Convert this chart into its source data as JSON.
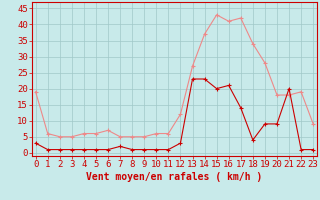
{
  "hours": [
    0,
    1,
    2,
    3,
    4,
    5,
    6,
    7,
    8,
    9,
    10,
    11,
    12,
    13,
    14,
    15,
    16,
    17,
    18,
    19,
    20,
    21,
    22,
    23
  ],
  "wind_avg": [
    3,
    1,
    1,
    1,
    1,
    1,
    1,
    2,
    1,
    1,
    1,
    1,
    3,
    23,
    23,
    20,
    21,
    14,
    4,
    9,
    9,
    20,
    1,
    1
  ],
  "wind_gust": [
    19,
    6,
    5,
    5,
    6,
    6,
    7,
    5,
    5,
    5,
    6,
    6,
    12,
    27,
    37,
    43,
    41,
    42,
    34,
    28,
    18,
    18,
    19,
    9
  ],
  "bg_color": "#c8eaea",
  "grid_color": "#a0c8c8",
  "line_avg_color": "#cc0000",
  "line_gust_color": "#ee8888",
  "xlabel": "Vent moyen/en rafales ( km/h )",
  "ylabel_ticks": [
    0,
    5,
    10,
    15,
    20,
    25,
    30,
    35,
    40,
    45
  ],
  "ylim": [
    -1,
    47
  ],
  "xlim": [
    -0.3,
    23.3
  ],
  "axis_fontsize": 7,
  "tick_fontsize": 6.5
}
